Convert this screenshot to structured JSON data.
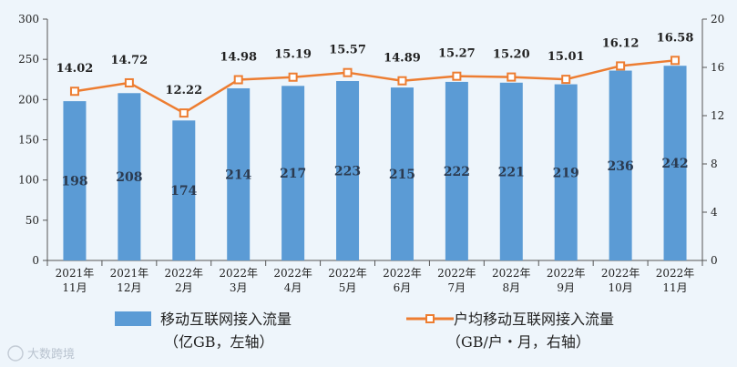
{
  "chart_data": {
    "type": "bar",
    "categories": [
      [
        "2021年",
        "11月"
      ],
      [
        "2021年",
        "12月"
      ],
      [
        "2022年",
        "2月"
      ],
      [
        "2022年",
        "3月"
      ],
      [
        "2022年",
        "4月"
      ],
      [
        "2022年",
        "5月"
      ],
      [
        "2022年",
        "6月"
      ],
      [
        "2022年",
        "7月"
      ],
      [
        "2022年",
        "8月"
      ],
      [
        "2022年",
        "9月"
      ],
      [
        "2022年",
        "10月"
      ],
      [
        "2022年",
        "11月"
      ]
    ],
    "series": [
      {
        "name": "移动互联网接入流量",
        "unit": "（亿GB，左轴）",
        "type": "bar",
        "axis": "left",
        "values": [
          198,
          208,
          174,
          214,
          217,
          223,
          215,
          222,
          221,
          219,
          236,
          242
        ],
        "labels": [
          "198",
          "208",
          "174",
          "214",
          "217",
          "223",
          "215",
          "222",
          "221",
          "219",
          "236",
          "242"
        ],
        "color": "#5b9bd5"
      },
      {
        "name": "户均移动互联网接入流量",
        "unit": "（GB/户・月，右轴）",
        "type": "line",
        "axis": "right",
        "values": [
          14.02,
          14.72,
          12.22,
          14.98,
          15.19,
          15.57,
          14.89,
          15.27,
          15.2,
          15.01,
          16.12,
          16.58
        ],
        "labels": [
          "14.02",
          "14.72",
          "12.22",
          "14.98",
          "15.19",
          "15.57",
          "14.89",
          "15.27",
          "15.20",
          "15.01",
          "16.12",
          "16.58"
        ],
        "color": "#ed7d31"
      }
    ],
    "y_left": {
      "min": 0,
      "max": 300,
      "ticks": [
        "0",
        "50",
        "100",
        "150",
        "200",
        "250",
        "300"
      ]
    },
    "y_right": {
      "min": 0,
      "max": 20,
      "ticks": [
        "0",
        "4",
        "8",
        "12",
        "16",
        "20"
      ]
    },
    "legend": "bottom",
    "grid": false
  },
  "watermark": "大数跨境",
  "colors": {
    "background": "#eef5fb",
    "axis": "#555555"
  }
}
